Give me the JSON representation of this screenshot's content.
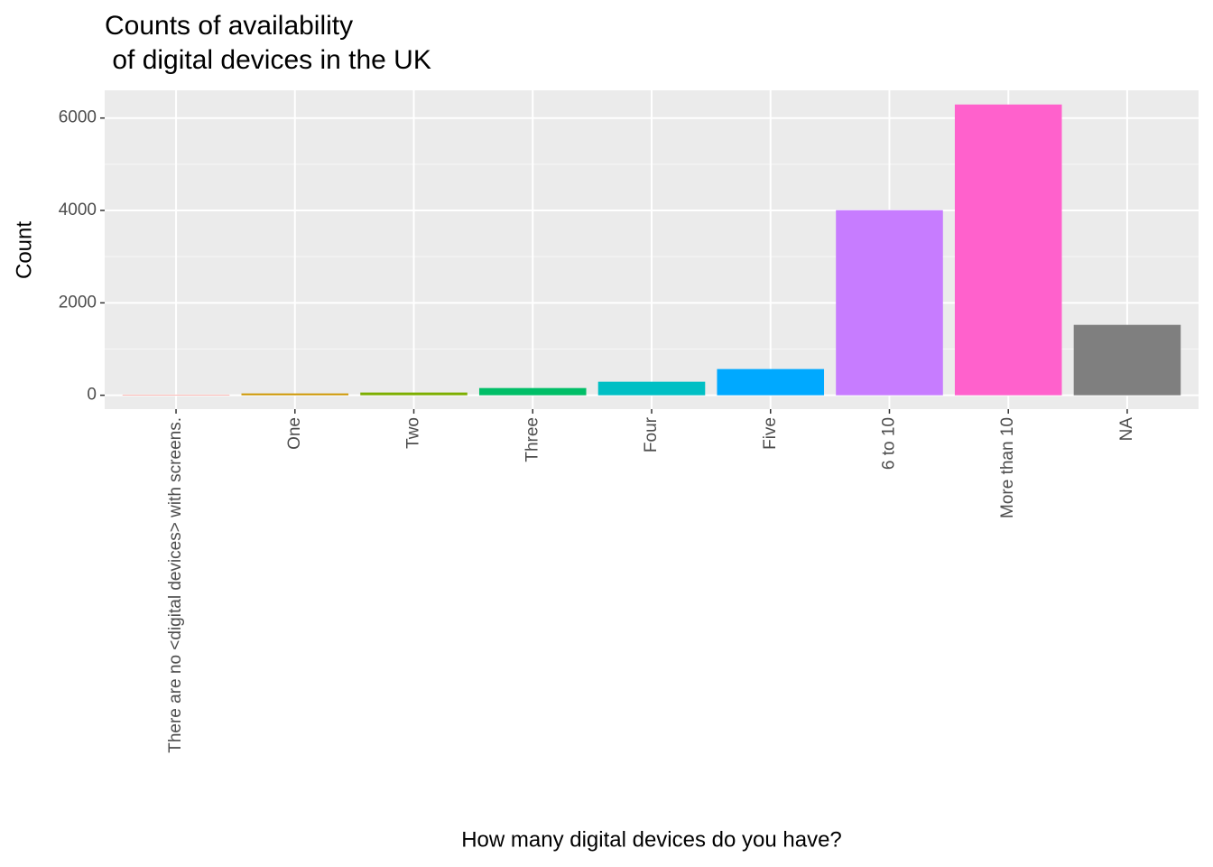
{
  "chart_data": {
    "type": "bar",
    "title": "Counts of availability\n of digital devices in the UK",
    "x_label": "How many digital devices do you have?",
    "y_label": "Count",
    "categories": [
      "There are no <digital devices> with screens.",
      "One",
      "Two",
      "Three",
      "Four",
      "Five",
      "6 to 10",
      "More than 10",
      "NA"
    ],
    "values": [
      10,
      39,
      59,
      156,
      293,
      567,
      4006,
      6293,
      1524
    ],
    "colors": [
      "#F8766D",
      "#CD9600",
      "#7CAE00",
      "#00BE67",
      "#00BFC4",
      "#00A9FF",
      "#C77CFF",
      "#FF61CC",
      "#7F7F7F"
    ],
    "ylim": [
      -300,
      6600
    ],
    "yticks": [
      0,
      2000,
      4000,
      6000
    ],
    "grid": true
  }
}
